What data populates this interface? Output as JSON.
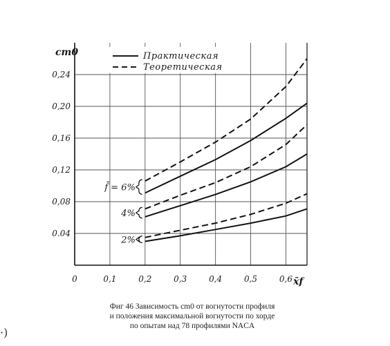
{
  "chart_data": {
    "type": "line",
    "ylabel": "cm0",
    "xlabel": "x̄f",
    "x_ticks": [
      "0",
      "0,1",
      "0,2",
      "0,3",
      "0,4",
      "0,5",
      "0,6"
    ],
    "y_ticks": [
      "0.04",
      "0,08",
      "0,12",
      "0,16",
      "0,20",
      "0,24"
    ],
    "xlim": [
      0,
      0.66
    ],
    "ylim": [
      0,
      0.28
    ],
    "grid": true,
    "legend_position": "top-left",
    "series": [
      {
        "name": "Практическая",
        "style": "solid"
      },
      {
        "name": "Теоретическая",
        "style": "dashed"
      }
    ],
    "groups": [
      {
        "label": "f̄ = 6%",
        "practical": {
          "x": [
            0.2,
            0.3,
            0.4,
            0.5,
            0.6,
            0.66
          ],
          "y": [
            0.091,
            0.112,
            0.133,
            0.157,
            0.185,
            0.204
          ]
        },
        "theoretical": {
          "x": [
            0.2,
            0.3,
            0.4,
            0.5,
            0.6,
            0.66
          ],
          "y": [
            0.106,
            0.13,
            0.155,
            0.184,
            0.225,
            0.26
          ]
        }
      },
      {
        "label": "4%",
        "practical": {
          "x": [
            0.2,
            0.3,
            0.4,
            0.5,
            0.6,
            0.66
          ],
          "y": [
            0.061,
            0.075,
            0.089,
            0.105,
            0.124,
            0.14
          ]
        },
        "theoretical": {
          "x": [
            0.2,
            0.3,
            0.4,
            0.5,
            0.6,
            0.66
          ],
          "y": [
            0.071,
            0.088,
            0.104,
            0.124,
            0.152,
            0.177
          ]
        }
      },
      {
        "label": "2%",
        "practical": {
          "x": [
            0.2,
            0.3,
            0.4,
            0.5,
            0.6,
            0.66
          ],
          "y": [
            0.03,
            0.037,
            0.045,
            0.053,
            0.062,
            0.071
          ]
        },
        "theoretical": {
          "x": [
            0.2,
            0.3,
            0.4,
            0.5,
            0.6,
            0.66
          ],
          "y": [
            0.035,
            0.044,
            0.053,
            0.064,
            0.078,
            0.09
          ]
        }
      }
    ]
  },
  "caption": [
    "Фиг 46 Зависимость cm0 от вогнутости профиля",
    "и положения максимальной вогнутости по хорде",
    "по опытам над 78 профилями NACA"
  ],
  "edge_mark": "·)"
}
